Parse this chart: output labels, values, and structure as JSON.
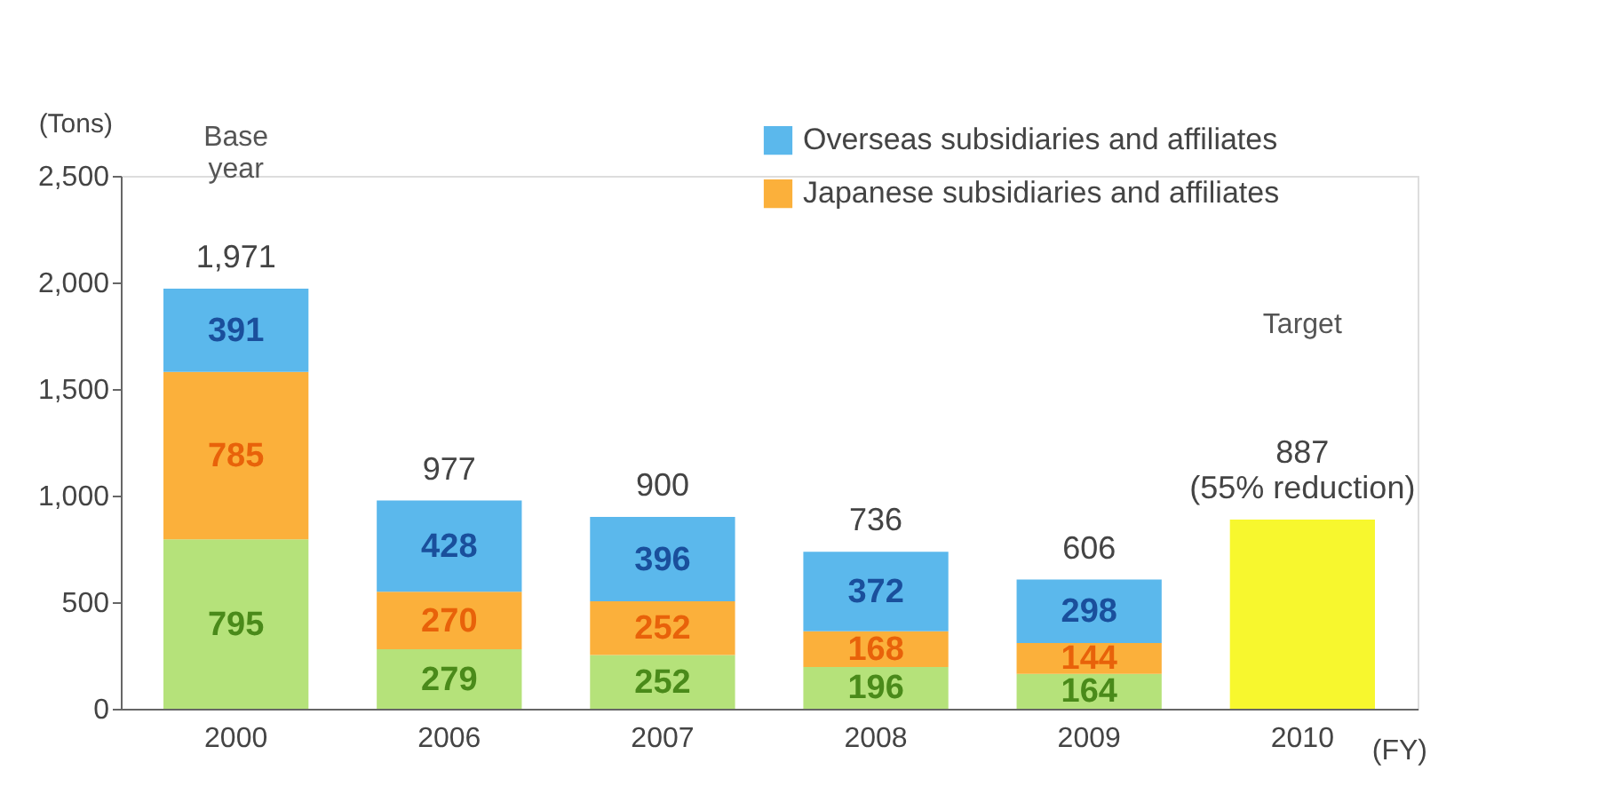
{
  "chart_data": {
    "type": "bar",
    "stacked": true,
    "ylabel": "(Tons)",
    "xlabel": "(FY)",
    "categories": [
      "2000",
      "2006",
      "2007",
      "2008",
      "2009",
      "2010"
    ],
    "series": [
      {
        "color": "#b5e27a",
        "values": [
          795,
          279,
          252,
          196,
          164,
          null
        ],
        "value_labels": [
          "795",
          "279",
          "252",
          "196",
          "164",
          null
        ]
      },
      {
        "name": "Japanese subsidiaries and affiliates",
        "color": "#fbb03b",
        "values": [
          785,
          270,
          252,
          168,
          144,
          null
        ],
        "value_labels": [
          "785",
          "270",
          "252",
          "168",
          "144",
          null
        ]
      },
      {
        "name": "Overseas subsidiaries and affiliates",
        "color": "#5bb8ec",
        "values": [
          391,
          428,
          396,
          372,
          298,
          null
        ],
        "value_labels": [
          "391",
          "428",
          "396",
          "372",
          "298",
          null
        ]
      },
      {
        "color": "#f7f72e",
        "values": [
          null,
          null,
          null,
          null,
          null,
          887
        ]
      }
    ],
    "totals": [
      "1,971",
      "977",
      "900",
      "736",
      "606",
      "887\n(55% reduction)"
    ],
    "ylim": [
      0,
      2500
    ],
    "yticks": [
      0,
      500,
      {
        "value": 1000,
        "label": "1,000"
      },
      {
        "value": 1500,
        "label": "1,500"
      },
      {
        "value": 2000,
        "label": "2,000"
      },
      {
        "value": 2500,
        "label": "2,500"
      }
    ],
    "grid": false,
    "legend": "top right",
    "annotations": [
      "Base year",
      "Target"
    ]
  }
}
